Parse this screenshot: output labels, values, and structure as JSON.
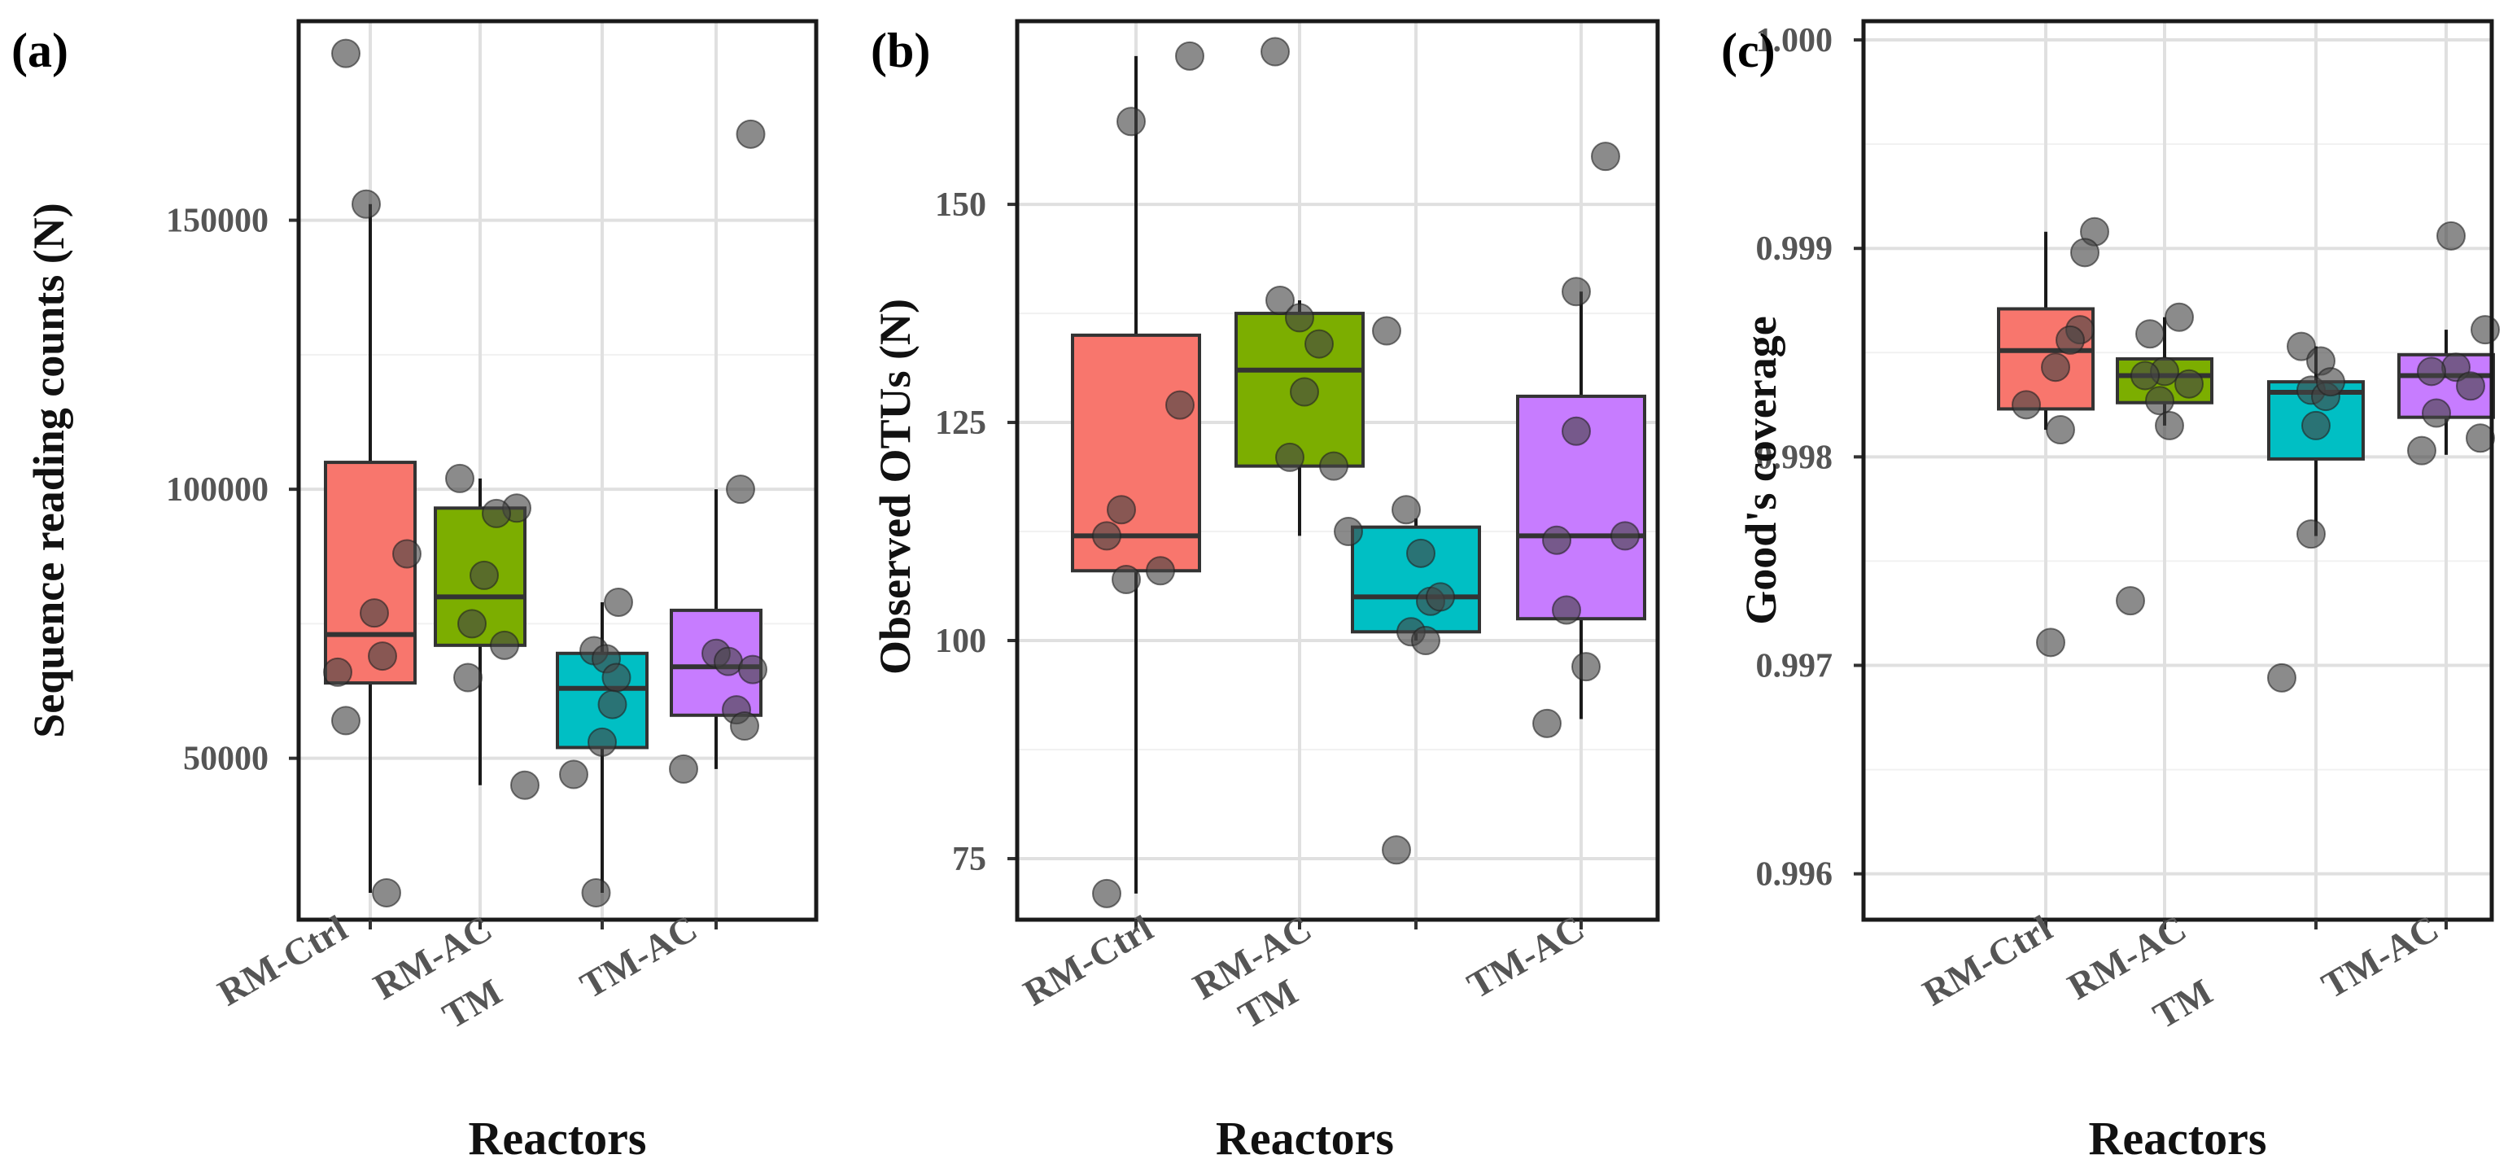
{
  "chart_data": [
    {
      "type": "boxplot",
      "panel_label": "(a)",
      "ylabel": "Sequence reading counts (N)",
      "xlabel": "Reactors",
      "ylim": [
        20000,
        187000
      ],
      "yticks": [
        50000,
        100000,
        150000
      ],
      "ytick_labels": [
        "50000",
        "100000",
        "150000"
      ],
      "categories": [
        "RM-Ctrl",
        "RM-AC",
        "TM",
        "TM-AC"
      ],
      "colors": [
        "#F8766D",
        "#7CAE00",
        "#00BFC4",
        "#C77CFF"
      ],
      "boxes": [
        {
          "name": "RM-Ctrl",
          "q1": 64000,
          "median": 73000,
          "q3": 105000,
          "whisker_low": 25000,
          "whisker_high": 153000
        },
        {
          "name": "RM-AC",
          "q1": 71000,
          "median": 80000,
          "q3": 96500,
          "whisker_low": 45000,
          "whisker_high": 102000
        },
        {
          "name": "TM",
          "q1": 52000,
          "median": 63000,
          "q3": 69500,
          "whisker_low": 25000,
          "whisker_high": 79000
        },
        {
          "name": "TM-AC",
          "q1": 58000,
          "median": 67000,
          "q3": 77500,
          "whisker_low": 48000,
          "whisker_high": 100000
        }
      ],
      "points": [
        {
          "cat": 0,
          "dx": -0.12,
          "y": 181000
        },
        {
          "cat": 0,
          "dx": -0.02,
          "y": 153000
        },
        {
          "cat": 0,
          "dx": 0.18,
          "y": 88000
        },
        {
          "cat": 0,
          "dx": 0.02,
          "y": 77000
        },
        {
          "cat": 0,
          "dx": 0.06,
          "y": 69000
        },
        {
          "cat": 0,
          "dx": -0.16,
          "y": 66000
        },
        {
          "cat": 0,
          "dx": -0.12,
          "y": 57000
        },
        {
          "cat": 0,
          "dx": 0.08,
          "y": 25000
        },
        {
          "cat": 1,
          "dx": -0.1,
          "y": 102000
        },
        {
          "cat": 1,
          "dx": 0.18,
          "y": 96500
        },
        {
          "cat": 1,
          "dx": 0.08,
          "y": 95500
        },
        {
          "cat": 1,
          "dx": 0.02,
          "y": 84000
        },
        {
          "cat": 1,
          "dx": -0.04,
          "y": 75000
        },
        {
          "cat": 1,
          "dx": 0.12,
          "y": 71000
        },
        {
          "cat": 1,
          "dx": -0.06,
          "y": 65000
        },
        {
          "cat": 1,
          "dx": 0.22,
          "y": 45000
        },
        {
          "cat": 2,
          "dx": 0.08,
          "y": 79000
        },
        {
          "cat": 2,
          "dx": -0.04,
          "y": 70000
        },
        {
          "cat": 2,
          "dx": 0.02,
          "y": 68500
        },
        {
          "cat": 2,
          "dx": 0.07,
          "y": 65000
        },
        {
          "cat": 2,
          "dx": 0.0,
          "y": 53000
        },
        {
          "cat": 2,
          "dx": -0.14,
          "y": 47000
        },
        {
          "cat": 2,
          "dx": -0.03,
          "y": 25000
        },
        {
          "cat": 2,
          "dx": 0.05,
          "y": 60000
        },
        {
          "cat": 3,
          "dx": 0.17,
          "y": 166000
        },
        {
          "cat": 3,
          "dx": 0.12,
          "y": 100000
        },
        {
          "cat": 3,
          "dx": 0.0,
          "y": 69500
        },
        {
          "cat": 3,
          "dx": 0.06,
          "y": 68000
        },
        {
          "cat": 3,
          "dx": 0.18,
          "y": 66500
        },
        {
          "cat": 3,
          "dx": 0.1,
          "y": 59000
        },
        {
          "cat": 3,
          "dx": 0.14,
          "y": 56000
        },
        {
          "cat": 3,
          "dx": -0.16,
          "y": 48000
        }
      ]
    },
    {
      "type": "boxplot",
      "panel_label": "(b)",
      "ylabel": "Observed OTUs (N)",
      "xlabel": "Reactors",
      "ylim": [
        68,
        171
      ],
      "yticks": [
        75,
        100,
        125,
        150
      ],
      "ytick_labels": [
        "75",
        "100",
        "125",
        "150"
      ],
      "categories": [
        "RM-Ctrl",
        "RM-AC",
        "TM",
        "TM-AC"
      ],
      "colors": [
        "#F8766D",
        "#7CAE00",
        "#00BFC4",
        "#C77CFF"
      ],
      "boxes": [
        {
          "name": "RM-Ctrl",
          "q1": 108,
          "median": 112,
          "q3": 135,
          "whisker_low": 71,
          "whisker_high": 167
        },
        {
          "name": "RM-AC",
          "q1": 120,
          "median": 131,
          "q3": 137.5,
          "whisker_low": 112,
          "whisker_high": 139
        },
        {
          "name": "TM",
          "q1": 101,
          "median": 105,
          "q3": 113,
          "whisker_low": 100,
          "whisker_high": 114
        },
        {
          "name": "TM-AC",
          "q1": 102.5,
          "median": 112,
          "q3": 128,
          "whisker_low": 91,
          "whisker_high": 140
        }
      ],
      "points": [
        {
          "cat": 0,
          "dx": 0.22,
          "y": 167
        },
        {
          "cat": 0,
          "dx": -0.02,
          "y": 159.5
        },
        {
          "cat": 0,
          "dx": 0.18,
          "y": 127
        },
        {
          "cat": 0,
          "dx": -0.06,
          "y": 115
        },
        {
          "cat": 0,
          "dx": -0.12,
          "y": 112
        },
        {
          "cat": 0,
          "dx": 0.1,
          "y": 108
        },
        {
          "cat": 0,
          "dx": -0.04,
          "y": 107
        },
        {
          "cat": 0,
          "dx": -0.12,
          "y": 71
        },
        {
          "cat": 1,
          "dx": -0.1,
          "y": 167.5
        },
        {
          "cat": 1,
          "dx": -0.08,
          "y": 139
        },
        {
          "cat": 1,
          "dx": 0.0,
          "y": 137
        },
        {
          "cat": 1,
          "dx": 0.08,
          "y": 134
        },
        {
          "cat": 1,
          "dx": 0.02,
          "y": 128.5
        },
        {
          "cat": 1,
          "dx": 0.14,
          "y": 120
        },
        {
          "cat": 1,
          "dx": -0.04,
          "y": 121
        },
        {
          "cat": 1,
          "dx": 0.2,
          "y": 112.5
        },
        {
          "cat": 2,
          "dx": -0.12,
          "y": 135.5
        },
        {
          "cat": 2,
          "dx": -0.04,
          "y": 115
        },
        {
          "cat": 2,
          "dx": 0.02,
          "y": 110
        },
        {
          "cat": 2,
          "dx": 0.06,
          "y": 104.5
        },
        {
          "cat": 2,
          "dx": 0.1,
          "y": 105
        },
        {
          "cat": 2,
          "dx": -0.02,
          "y": 101
        },
        {
          "cat": 2,
          "dx": 0.04,
          "y": 100
        },
        {
          "cat": 2,
          "dx": -0.08,
          "y": 76
        },
        {
          "cat": 3,
          "dx": 0.1,
          "y": 155.5
        },
        {
          "cat": 3,
          "dx": -0.02,
          "y": 140
        },
        {
          "cat": 3,
          "dx": -0.02,
          "y": 124
        },
        {
          "cat": 3,
          "dx": 0.18,
          "y": 112
        },
        {
          "cat": 3,
          "dx": -0.1,
          "y": 111.5
        },
        {
          "cat": 3,
          "dx": -0.06,
          "y": 103.5
        },
        {
          "cat": 3,
          "dx": 0.02,
          "y": 97
        },
        {
          "cat": 3,
          "dx": -0.14,
          "y": 90.5
        }
      ]
    },
    {
      "type": "boxplot",
      "panel_label": "(c)",
      "ylabel": "Good's coverage",
      "xlabel": "Reactors",
      "ylim": [
        0.99578,
        1.00009
      ],
      "yticks": [
        0.996,
        0.997,
        0.998,
        0.999,
        1.0
      ],
      "ytick_labels": [
        "0.996",
        "0.997",
        "0.998",
        "0.999",
        "1.000"
      ],
      "categories": [
        "RM-Ctrl",
        "RM-AC",
        "TM",
        "TM-AC"
      ],
      "colors": [
        "#F8766D",
        "#7CAE00",
        "#00BFC4",
        "#C77CFF"
      ],
      "boxes": [
        {
          "name": "RM-Ctrl",
          "q1": 0.99823,
          "median": 0.99851,
          "q3": 0.99871,
          "whisker_low": 0.99813,
          "whisker_high": 0.99908
        },
        {
          "name": "RM-AC",
          "q1": 0.99826,
          "median": 0.99839,
          "q3": 0.99847,
          "whisker_low": 0.99815,
          "whisker_high": 0.99867
        },
        {
          "name": "TM",
          "q1": 0.99799,
          "median": 0.99831,
          "q3": 0.99836,
          "whisker_low": 0.99762,
          "whisker_high": 0.99853
        },
        {
          "name": "TM-AC",
          "q1": 0.99819,
          "median": 0.99839,
          "q3": 0.99849,
          "whisker_low": 0.99801,
          "whisker_high": 0.99861
        }
      ],
      "points": [
        {
          "cat": 0,
          "dx": 0.2,
          "y": 0.99908
        },
        {
          "cat": 0,
          "dx": 0.16,
          "y": 0.99898
        },
        {
          "cat": 0,
          "dx": 0.14,
          "y": 0.99861
        },
        {
          "cat": 0,
          "dx": 0.1,
          "y": 0.99856
        },
        {
          "cat": 0,
          "dx": 0.04,
          "y": 0.99843
        },
        {
          "cat": 0,
          "dx": -0.08,
          "y": 0.99825
        },
        {
          "cat": 0,
          "dx": 0.06,
          "y": 0.99813
        },
        {
          "cat": 0,
          "dx": 0.02,
          "y": 0.99711
        },
        {
          "cat": 1,
          "dx": 0.06,
          "y": 0.99867
        },
        {
          "cat": 1,
          "dx": -0.06,
          "y": 0.99859
        },
        {
          "cat": 1,
          "dx": 0.0,
          "y": 0.99841
        },
        {
          "cat": 1,
          "dx": -0.08,
          "y": 0.99839
        },
        {
          "cat": 1,
          "dx": 0.1,
          "y": 0.99835
        },
        {
          "cat": 1,
          "dx": -0.02,
          "y": 0.99827
        },
        {
          "cat": 1,
          "dx": 0.02,
          "y": 0.99815
        },
        {
          "cat": 1,
          "dx": -0.14,
          "y": 0.99731
        },
        {
          "cat": 2,
          "dx": -0.06,
          "y": 0.99853
        },
        {
          "cat": 2,
          "dx": 0.02,
          "y": 0.99846
        },
        {
          "cat": 2,
          "dx": -0.02,
          "y": 0.99832
        },
        {
          "cat": 2,
          "dx": 0.04,
          "y": 0.99829
        },
        {
          "cat": 2,
          "dx": 0.0,
          "y": 0.99815
        },
        {
          "cat": 2,
          "dx": -0.02,
          "y": 0.99763
        },
        {
          "cat": 2,
          "dx": -0.14,
          "y": 0.99694
        },
        {
          "cat": 2,
          "dx": 0.06,
          "y": 0.99836
        },
        {
          "cat": 3,
          "dx": 0.02,
          "y": 0.99906
        },
        {
          "cat": 3,
          "dx": 0.16,
          "y": 0.99861
        },
        {
          "cat": 3,
          "dx": 0.04,
          "y": 0.99843
        },
        {
          "cat": 3,
          "dx": -0.06,
          "y": 0.99841
        },
        {
          "cat": 3,
          "dx": 0.1,
          "y": 0.99834
        },
        {
          "cat": 3,
          "dx": -0.04,
          "y": 0.99821
        },
        {
          "cat": 3,
          "dx": 0.14,
          "y": 0.99809
        },
        {
          "cat": 3,
          "dx": -0.1,
          "y": 0.99803
        }
      ]
    }
  ]
}
